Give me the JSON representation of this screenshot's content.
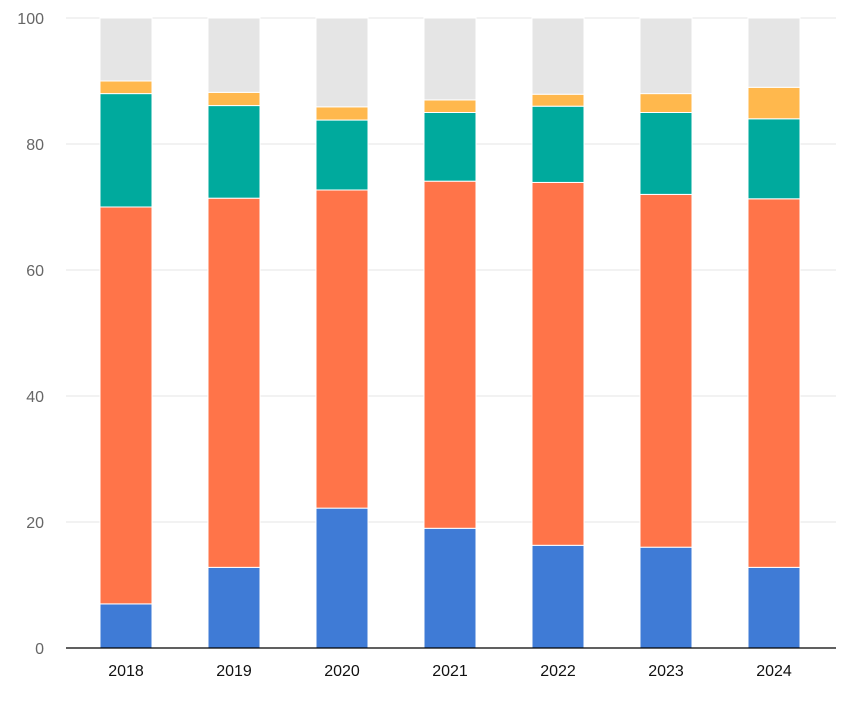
{
  "chart_data": {
    "type": "bar",
    "stacked": true,
    "title": "",
    "xlabel": "",
    "ylabel": "",
    "ylim": [
      0,
      100
    ],
    "yticks": [
      "0",
      "20",
      "40",
      "60",
      "80",
      "100"
    ],
    "grid": true,
    "categories": [
      "2018",
      "2019",
      "2020",
      "2021",
      "2022",
      "2023",
      "2024"
    ],
    "series": [
      {
        "color": "#3f7bd6",
        "values": [
          7.0,
          12.8,
          22.2,
          19.0,
          16.3,
          16.0,
          12.8
        ]
      },
      {
        "color": "#ff7449",
        "values": [
          63.0,
          58.6,
          50.5,
          55.1,
          57.6,
          56.0,
          58.5
        ]
      },
      {
        "color": "#00aa9d",
        "values": [
          18.0,
          14.7,
          11.1,
          10.9,
          12.1,
          13.0,
          12.7
        ]
      },
      {
        "color": "#ffb84d",
        "values": [
          2.0,
          2.1,
          2.1,
          2.0,
          1.9,
          3.0,
          5.0
        ]
      },
      {
        "color": "#e5e5e5",
        "values": [
          10.0,
          11.8,
          14.1,
          13.0,
          12.1,
          12.0,
          11.0
        ]
      }
    ]
  }
}
